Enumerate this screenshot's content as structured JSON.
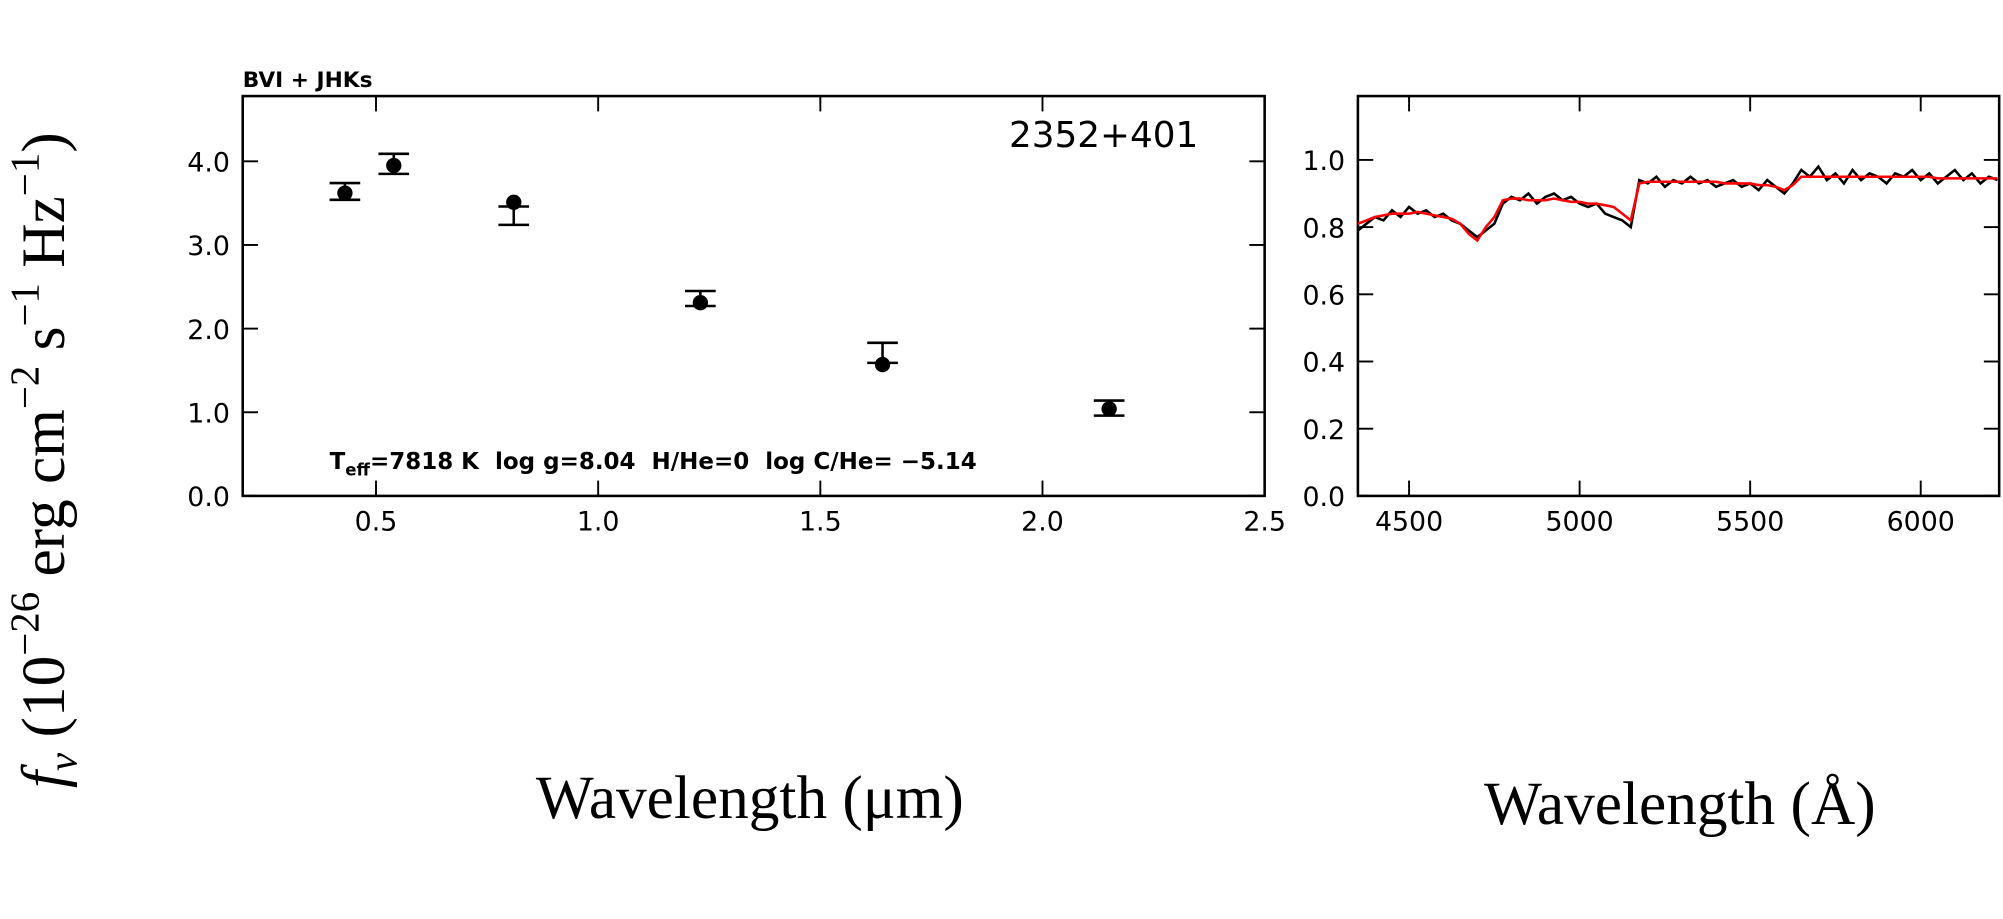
{
  "chart_data": [
    {
      "type": "errorbar",
      "label": "BVI + JHKs",
      "object": "2352+401",
      "params": {
        "symbol": "T",
        "subscript": "eff",
        "text": "=7818 K  log g=8.04  H/He=0  log C/He= −5.14"
      },
      "xlabel": "Wavelength (μm)",
      "ylabel": [
        {
          "text": "f",
          "style": "italic"
        },
        {
          "text": "ν",
          "shift": "sub",
          "style": "italic"
        },
        {
          "text": " (10"
        },
        {
          "text": "−26",
          "shift": "super"
        },
        {
          "text": " erg cm"
        },
        {
          "text": "−2",
          "shift": "super"
        },
        {
          "text": " s"
        },
        {
          "text": "−1",
          "shift": "super"
        },
        {
          "text": " Hz"
        },
        {
          "text": "−1",
          "shift": "super"
        },
        {
          "text": ")"
        }
      ],
      "xlim": [
        0.2,
        2.5
      ],
      "ylim": [
        0,
        4.78
      ],
      "xticks": [
        {
          "value": 0.5,
          "label": "0.5"
        },
        {
          "value": 1,
          "label": "1.0"
        },
        {
          "value": 1.5,
          "label": "1.5"
        },
        {
          "value": 2,
          "label": "2.0"
        },
        {
          "value": 2.5,
          "label": "2.5"
        }
      ],
      "yticks": [
        {
          "value": 0,
          "label": "0.0"
        },
        {
          "value": 1,
          "label": "1.0"
        },
        {
          "value": 2,
          "label": "2.0"
        },
        {
          "value": 3,
          "label": "3.0"
        },
        {
          "value": 4,
          "label": "4.0"
        }
      ],
      "x": [
        0.43,
        0.54,
        0.81,
        1.23,
        1.64,
        2.15
      ],
      "series": [
        {
          "color": "#000000",
          "values": [
            3.64,
            3.97,
            3.35,
            2.36,
            1.71,
            1.05
          ],
          "errors": [
            0.1,
            0.12,
            0.11,
            0.09,
            0.12,
            0.09
          ]
        },
        {
          "color": "#000000",
          "marker": "circle",
          "values": [
            3.62,
            3.95,
            3.51,
            2.31,
            1.57,
            1.04
          ]
        }
      ]
    },
    {
      "type": "line",
      "xlabel": "Wavelength (Å)",
      "xlim": [
        4350,
        6230
      ],
      "ylim": [
        0,
        1.19
      ],
      "xticks": [
        4500,
        5000,
        5500,
        6000
      ],
      "yticks": [
        {
          "value": 0,
          "label": "0.0"
        },
        {
          "value": 0.2,
          "label": "0.2"
        },
        {
          "value": 0.4,
          "label": "0.4"
        },
        {
          "value": 0.6,
          "label": "0.6"
        },
        {
          "value": 0.8,
          "label": "0.8"
        },
        {
          "value": 1,
          "label": "1.0"
        }
      ],
      "x": [
        4350,
        4375,
        4400,
        4425,
        4450,
        4475,
        4500,
        4525,
        4550,
        4575,
        4600,
        4625,
        4650,
        4675,
        4700,
        4725,
        4750,
        4775,
        4800,
        4825,
        4850,
        4875,
        4900,
        4925,
        4950,
        4975,
        5000,
        5025,
        5050,
        5075,
        5100,
        5125,
        5150,
        5175,
        5200,
        5225,
        5250,
        5275,
        5300,
        5325,
        5350,
        5375,
        5400,
        5425,
        5450,
        5475,
        5500,
        5525,
        5550,
        5575,
        5600,
        5625,
        5650,
        5675,
        5700,
        5725,
        5750,
        5775,
        5800,
        5825,
        5850,
        5875,
        5900,
        5925,
        5950,
        5975,
        6000,
        6025,
        6050,
        6075,
        6100,
        6125,
        6150,
        6175,
        6200,
        6225
      ],
      "series": [
        {
          "color": "#000000",
          "values": [
            0.79,
            0.81,
            0.83,
            0.82,
            0.85,
            0.83,
            0.86,
            0.84,
            0.85,
            0.83,
            0.84,
            0.82,
            0.81,
            0.79,
            0.77,
            0.79,
            0.81,
            0.87,
            0.89,
            0.88,
            0.9,
            0.87,
            0.89,
            0.9,
            0.88,
            0.89,
            0.87,
            0.86,
            0.87,
            0.84,
            0.83,
            0.82,
            0.8,
            0.94,
            0.93,
            0.95,
            0.92,
            0.94,
            0.93,
            0.95,
            0.93,
            0.94,
            0.92,
            0.93,
            0.94,
            0.92,
            0.93,
            0.91,
            0.94,
            0.92,
            0.9,
            0.93,
            0.97,
            0.95,
            0.98,
            0.94,
            0.96,
            0.93,
            0.97,
            0.94,
            0.96,
            0.95,
            0.93,
            0.96,
            0.95,
            0.97,
            0.94,
            0.96,
            0.93,
            0.95,
            0.97,
            0.94,
            0.96,
            0.93,
            0.95,
            0.94
          ]
        },
        {
          "color": "#ff0000",
          "values": [
            0.81,
            0.82,
            0.83,
            0.835,
            0.84,
            0.84,
            0.84,
            0.845,
            0.84,
            0.835,
            0.83,
            0.825,
            0.81,
            0.78,
            0.76,
            0.8,
            0.83,
            0.88,
            0.885,
            0.885,
            0.88,
            0.88,
            0.88,
            0.885,
            0.88,
            0.875,
            0.875,
            0.87,
            0.87,
            0.865,
            0.86,
            0.84,
            0.82,
            0.93,
            0.935,
            0.935,
            0.935,
            0.935,
            0.935,
            0.935,
            0.935,
            0.935,
            0.935,
            0.93,
            0.93,
            0.93,
            0.93,
            0.925,
            0.925,
            0.92,
            0.91,
            0.925,
            0.95,
            0.95,
            0.95,
            0.95,
            0.95,
            0.95,
            0.95,
            0.95,
            0.95,
            0.95,
            0.95,
            0.95,
            0.95,
            0.95,
            0.95,
            0.95,
            0.945,
            0.945,
            0.945,
            0.945,
            0.945,
            0.945,
            0.945,
            0.945
          ]
        }
      ]
    }
  ]
}
